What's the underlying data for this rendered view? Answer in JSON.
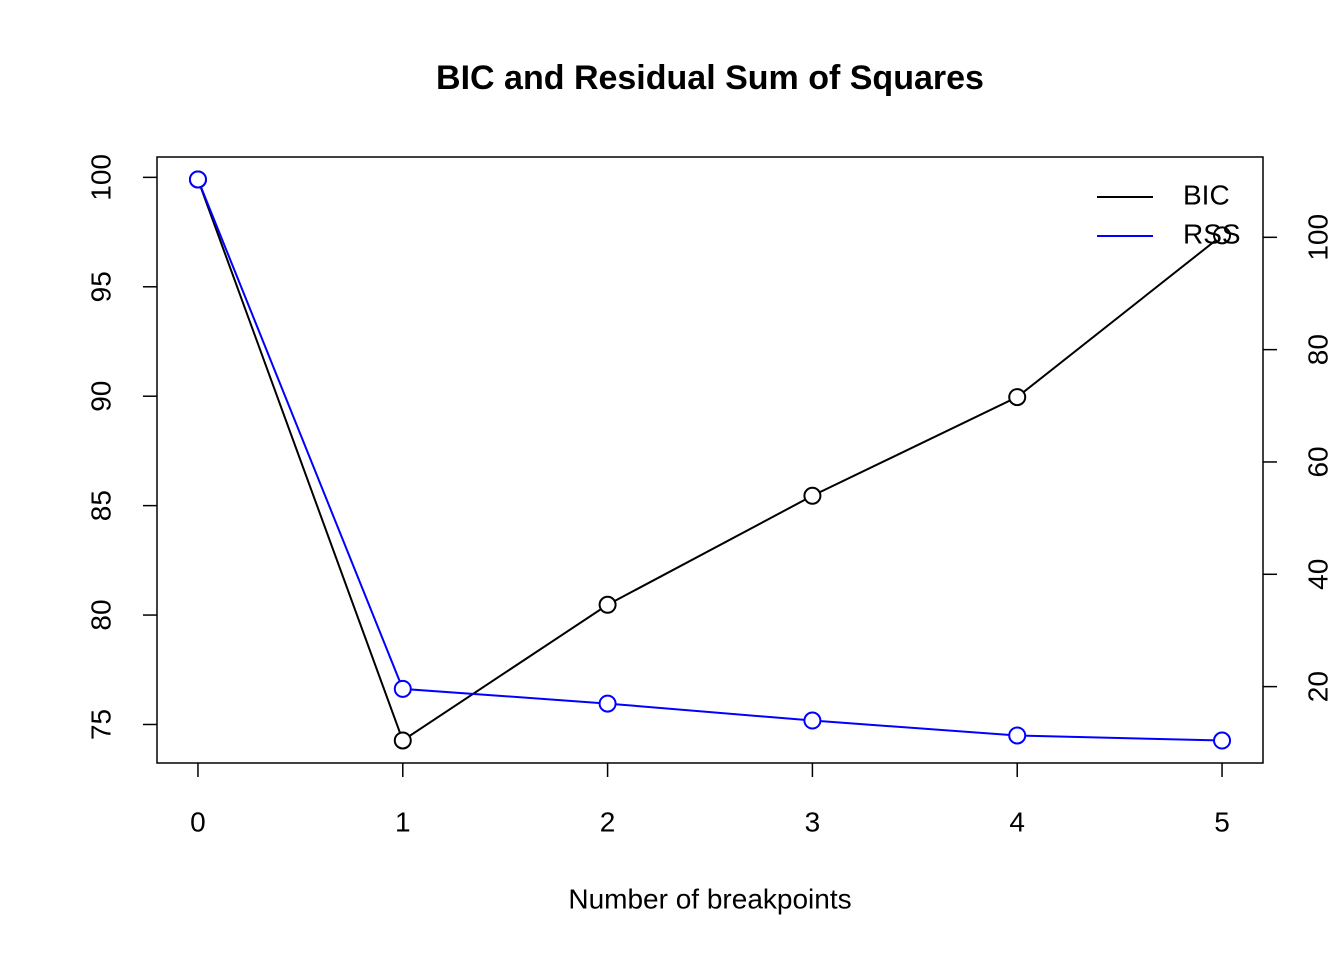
{
  "chart_data": {
    "type": "line",
    "title": "BIC and Residual Sum of Squares",
    "x_label": "Number of breakpoints",
    "x": [
      0,
      1,
      2,
      3,
      4,
      5
    ],
    "xlim": [
      -0.2,
      5.2
    ],
    "xticks": [
      0,
      1,
      2,
      3,
      4,
      5
    ],
    "ylim": [
      73.24,
      100.93
    ],
    "yticks": [
      75,
      80,
      85,
      90,
      95,
      100
    ],
    "y2lim": [
      6.4,
      114.3
    ],
    "y2ticks": [
      20,
      40,
      60,
      80,
      100
    ],
    "legend": "topright",
    "grid": false,
    "series": [
      {
        "name": "BIC",
        "color": "#000000",
        "values": [
          99.9,
          74.27,
          80.47,
          85.45,
          89.96,
          97.35
        ]
      },
      {
        "name": "RSS",
        "color": "#0000ff",
        "axis": "y2",
        "values": [
          110.3,
          19.6,
          16.98,
          13.96,
          11.3,
          10.4
        ]
      }
    ]
  }
}
